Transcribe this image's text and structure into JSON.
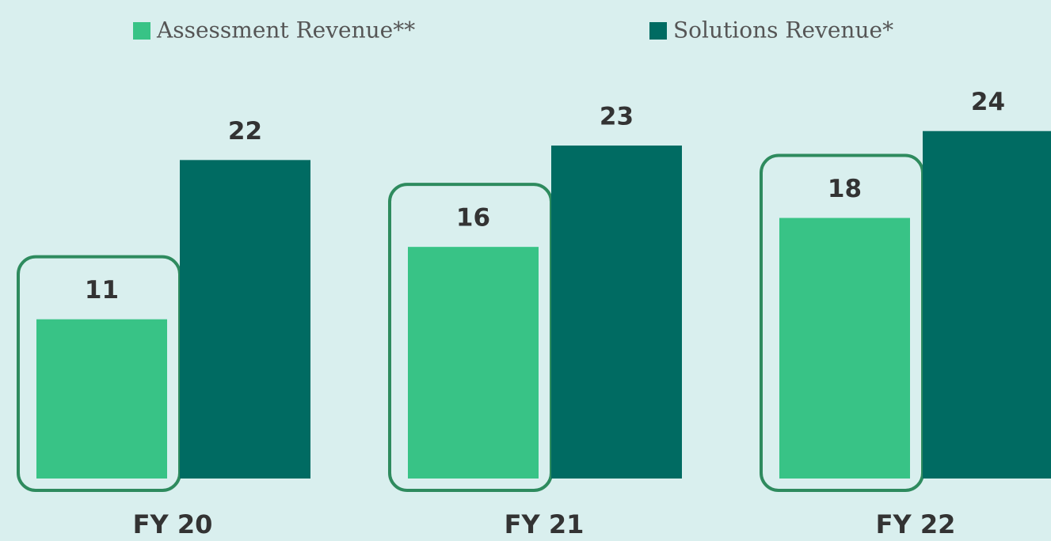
{
  "chart_data": {
    "type": "bar",
    "categories": [
      "FY 20",
      "FY 21",
      "FY 22"
    ],
    "series": [
      {
        "name": "Assessment Revenue**",
        "color": "#38c386",
        "values": [
          11,
          16,
          18
        ]
      },
      {
        "name": "Solutions Revenue*",
        "color": "#006b62",
        "values": [
          22,
          23,
          24
        ]
      }
    ],
    "ylim": [
      0,
      33
    ]
  }
}
